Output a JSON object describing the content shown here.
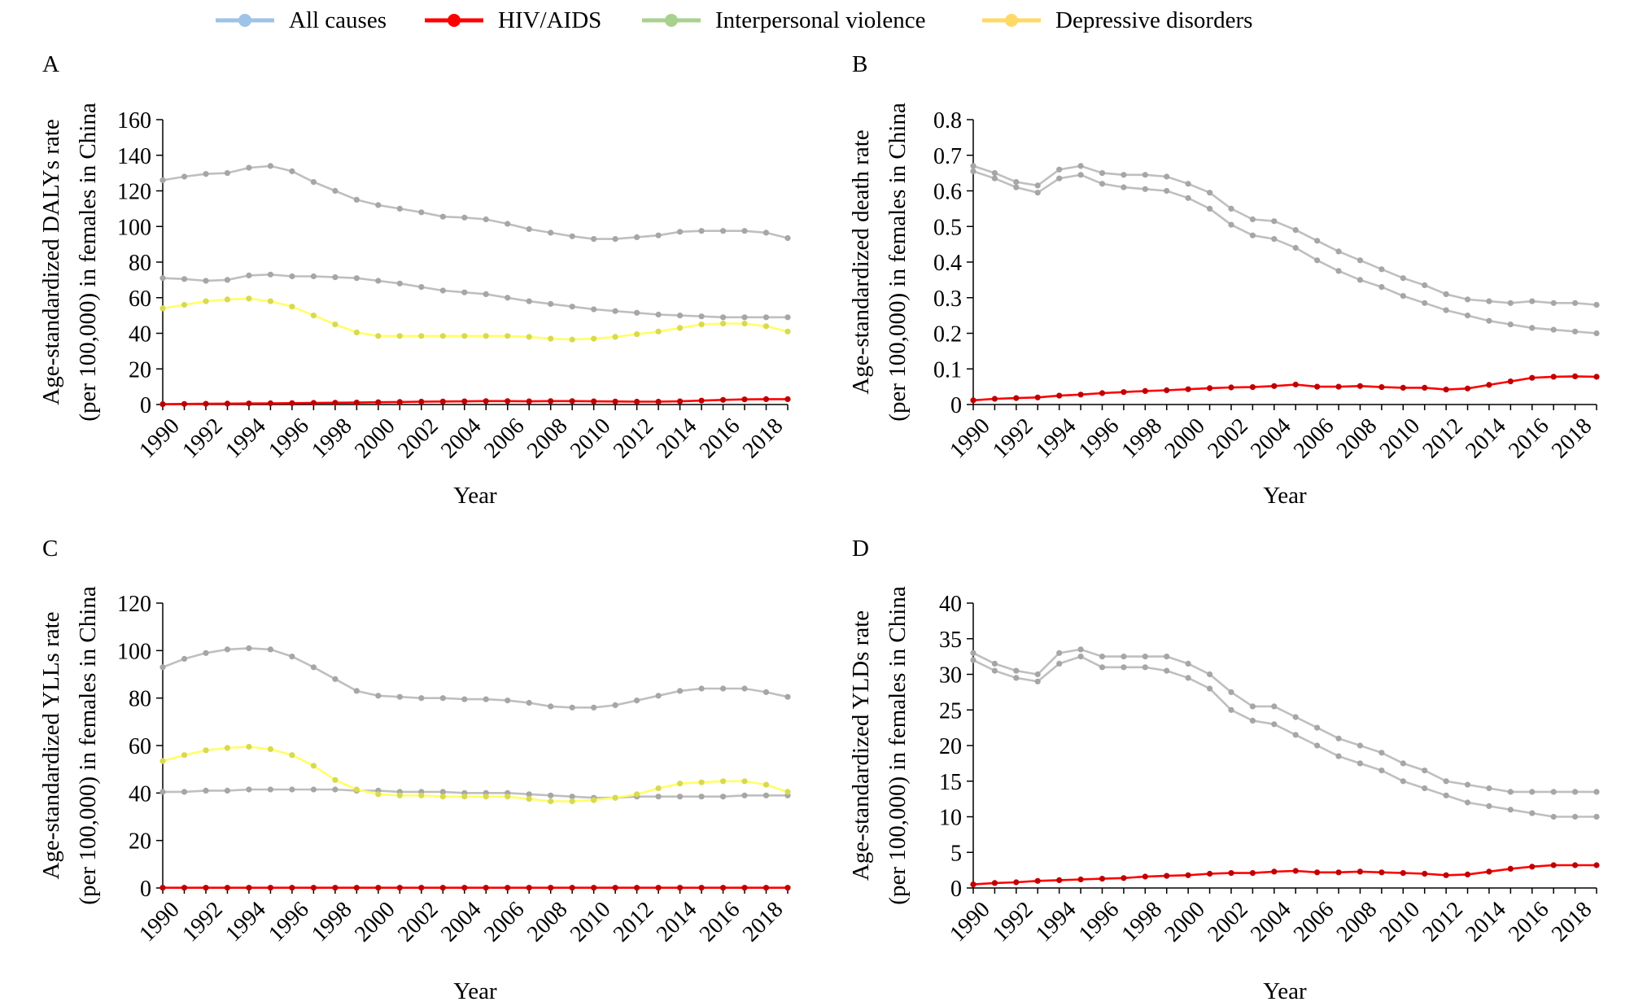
{
  "legend": [
    {
      "name": "All causes",
      "color": "#9dc3e6"
    },
    {
      "name": "HIV/AIDS",
      "color": "#ff0000"
    },
    {
      "name": "Interpersonal violence",
      "color": "#a9d18e"
    },
    {
      "name": "Depressive disorders",
      "color": "#ffd966"
    }
  ],
  "chart_data": [
    {
      "type": "line",
      "panel": "A",
      "xlabel": "Year",
      "ylabel": [
        "Age-standardized DALYs rate",
        "(per 100,000) in females in China"
      ],
      "ylim": [
        0,
        160
      ],
      "yticks": [
        "0",
        "20",
        "40",
        "60",
        "80",
        "100",
        "120",
        "140",
        "160"
      ],
      "xtick_labels": [
        "1990",
        "1992",
        "1994",
        "1996",
        "1998",
        "2000",
        "2002",
        "2004",
        "2006",
        "2008",
        "2010",
        "2012",
        "2014",
        "2016",
        "2018"
      ],
      "x": [
        1990,
        1991,
        1992,
        1993,
        1994,
        1995,
        1996,
        1997,
        1998,
        1999,
        2000,
        2001,
        2002,
        2003,
        2004,
        2005,
        2006,
        2007,
        2008,
        2009,
        2010,
        2011,
        2012,
        2013,
        2014,
        2015,
        2016,
        2017,
        2018,
        2019
      ],
      "series": [
        {
          "name": "All causes",
          "color": "#bfbfbf",
          "values": [
            126,
            128,
            129.5,
            130,
            133,
            134,
            131,
            125,
            120,
            115,
            112,
            110,
            108,
            105.5,
            105,
            104,
            101.5,
            98.5,
            96.5,
            94.5,
            93,
            93,
            94,
            95,
            97,
            97.5,
            97.5,
            97.5,
            96.5,
            93.5
          ]
        },
        {
          "name": "Interpersonal violence",
          "color": "#bfbfbf",
          "values": [
            71,
            70.5,
            69.5,
            70,
            72.5,
            73,
            72,
            72,
            71.5,
            71,
            69.5,
            68,
            66,
            64,
            63,
            62,
            60,
            58,
            56.5,
            55,
            53.5,
            52.5,
            51.5,
            50.5,
            50,
            49.5,
            49,
            49,
            49,
            49
          ]
        },
        {
          "name": "Depressive disorders",
          "color": "#ffff66",
          "values": [
            54,
            56,
            58,
            59,
            59.5,
            58,
            55,
            50,
            45,
            40.5,
            38.5,
            38.5,
            38.5,
            38.5,
            38.5,
            38.5,
            38.5,
            38,
            37,
            36.5,
            37,
            38,
            39.5,
            41,
            43,
            45,
            45.5,
            45.5,
            44,
            41
          ]
        },
        {
          "name": "HIV/AIDS",
          "color": "#ff0000",
          "values": [
            0.2,
            0.3,
            0.4,
            0.5,
            0.6,
            0.7,
            0.8,
            0.9,
            1,
            1.1,
            1.3,
            1.4,
            1.6,
            1.7,
            1.8,
            1.9,
            1.9,
            1.8,
            1.9,
            1.9,
            1.8,
            1.7,
            1.6,
            1.6,
            1.8,
            2.2,
            2.6,
            2.9,
            3,
            3
          ]
        }
      ]
    },
    {
      "type": "line",
      "panel": "B",
      "xlabel": "Year",
      "ylabel": [
        "Age-standardized death rate",
        "(per 100,000) in females in China"
      ],
      "ylim": [
        0,
        0.8
      ],
      "yticks": [
        "0",
        "0.1",
        "0.2",
        "0.3",
        "0.4",
        "0.5",
        "0.6",
        "0.7",
        "0.8"
      ],
      "xtick_labels": [
        "1990",
        "1992",
        "1994",
        "1996",
        "1998",
        "2000",
        "2002",
        "2004",
        "2006",
        "2008",
        "2010",
        "2012",
        "2014",
        "2016",
        "2018"
      ],
      "x": [
        1990,
        1991,
        1992,
        1993,
        1994,
        1995,
        1996,
        1997,
        1998,
        1999,
        2000,
        2001,
        2002,
        2003,
        2004,
        2005,
        2006,
        2007,
        2008,
        2009,
        2010,
        2011,
        2012,
        2013,
        2014,
        2015,
        2016,
        2017,
        2018,
        2019
      ],
      "series": [
        {
          "name": "All causes",
          "color": "#bfbfbf",
          "values": [
            0.67,
            0.65,
            0.625,
            0.615,
            0.66,
            0.67,
            0.65,
            0.645,
            0.645,
            0.64,
            0.62,
            0.595,
            0.55,
            0.52,
            0.515,
            0.49,
            0.46,
            0.43,
            0.405,
            0.38,
            0.355,
            0.335,
            0.31,
            0.295,
            0.29,
            0.285,
            0.29,
            0.285,
            0.285,
            0.28
          ]
        },
        {
          "name": "Interpersonal violence",
          "color": "#bfbfbf",
          "values": [
            0.655,
            0.635,
            0.61,
            0.595,
            0.635,
            0.645,
            0.62,
            0.61,
            0.605,
            0.6,
            0.58,
            0.55,
            0.505,
            0.475,
            0.465,
            0.44,
            0.405,
            0.375,
            0.35,
            0.33,
            0.305,
            0.285,
            0.265,
            0.25,
            0.235,
            0.225,
            0.215,
            0.21,
            0.205,
            0.2
          ]
        },
        {
          "name": "HIV/AIDS",
          "color": "#ff0000",
          "values": [
            0.012,
            0.016,
            0.018,
            0.02,
            0.025,
            0.028,
            0.032,
            0.035,
            0.038,
            0.04,
            0.043,
            0.046,
            0.048,
            0.049,
            0.052,
            0.056,
            0.05,
            0.05,
            0.052,
            0.049,
            0.047,
            0.047,
            0.042,
            0.045,
            0.055,
            0.065,
            0.075,
            0.078,
            0.079,
            0.078
          ]
        }
      ]
    },
    {
      "type": "line",
      "panel": "C",
      "xlabel": "Year",
      "ylabel": [
        "Age-standardized YLLs rate",
        "(per 100,000) in females in China"
      ],
      "ylim": [
        0,
        120
      ],
      "yticks": [
        "0",
        "20",
        "40",
        "60",
        "80",
        "100",
        "120"
      ],
      "xtick_labels": [
        "1990",
        "1992",
        "1994",
        "1996",
        "1998",
        "2000",
        "2002",
        "2004",
        "2006",
        "2008",
        "2010",
        "2012",
        "2014",
        "2016",
        "2018"
      ],
      "x": [
        1990,
        1991,
        1992,
        1993,
        1994,
        1995,
        1996,
        1997,
        1998,
        1999,
        2000,
        2001,
        2002,
        2003,
        2004,
        2005,
        2006,
        2007,
        2008,
        2009,
        2010,
        2011,
        2012,
        2013,
        2014,
        2015,
        2016,
        2017,
        2018,
        2019
      ],
      "series": [
        {
          "name": "All causes",
          "color": "#bfbfbf",
          "values": [
            93,
            96.5,
            99,
            100.5,
            101,
            100.5,
            97.5,
            93,
            88,
            83,
            81,
            80.5,
            80,
            80,
            79.5,
            79.5,
            79,
            78,
            76.5,
            76,
            76,
            77,
            79,
            81,
            83,
            84,
            84,
            84,
            82.5,
            80.5
          ]
        },
        {
          "name": "Interpersonal violence",
          "color": "#bfbfbf",
          "values": [
            40.5,
            40.5,
            41,
            41,
            41.5,
            41.5,
            41.5,
            41.5,
            41.5,
            41,
            41,
            40.5,
            40.5,
            40.5,
            40,
            40,
            40,
            39.5,
            39,
            38.5,
            38,
            38,
            38.5,
            38.5,
            38.5,
            38.5,
            38.5,
            39,
            39,
            39
          ]
        },
        {
          "name": "Depressive disorders",
          "color": "#ffff66",
          "values": [
            53.5,
            56,
            58,
            59,
            59.5,
            58.5,
            56,
            51.5,
            45.5,
            41.5,
            39.5,
            39,
            39,
            38.5,
            38.5,
            38.5,
            38.5,
            37.5,
            36.5,
            36.5,
            37,
            38,
            39.5,
            42,
            44,
            44.5,
            45,
            45,
            43.5,
            40.5
          ]
        },
        {
          "name": "HIV/AIDS",
          "color": "#ff0000",
          "values": [
            0.1,
            0.1,
            0.1,
            0.1,
            0.1,
            0.1,
            0.1,
            0.1,
            0.1,
            0.1,
            0.1,
            0.1,
            0.1,
            0.1,
            0.1,
            0.1,
            0.1,
            0.1,
            0.1,
            0.1,
            0.1,
            0.1,
            0.1,
            0.1,
            0.1,
            0.1,
            0.1,
            0.1,
            0.1,
            0.1
          ]
        }
      ]
    },
    {
      "type": "line",
      "panel": "D",
      "xlabel": "Year",
      "ylabel": [
        "Age-standardized YLDs rate",
        "(per 100,000) in females in China"
      ],
      "ylim": [
        0,
        40
      ],
      "yticks": [
        "0",
        "5",
        "10",
        "15",
        "20",
        "25",
        "30",
        "35",
        "40"
      ],
      "xtick_labels": [
        "1990",
        "1992",
        "1994",
        "1996",
        "1998",
        "2000",
        "2002",
        "2004",
        "2006",
        "2008",
        "2010",
        "2012",
        "2014",
        "2016",
        "2018"
      ],
      "x": [
        1990,
        1991,
        1992,
        1993,
        1994,
        1995,
        1996,
        1997,
        1998,
        1999,
        2000,
        2001,
        2002,
        2003,
        2004,
        2005,
        2006,
        2007,
        2008,
        2009,
        2010,
        2011,
        2012,
        2013,
        2014,
        2015,
        2016,
        2017,
        2018,
        2019
      ],
      "series": [
        {
          "name": "All causes",
          "color": "#bfbfbf",
          "values": [
            33,
            31.5,
            30.5,
            30,
            33,
            33.5,
            32.5,
            32.5,
            32.5,
            32.5,
            31.5,
            30,
            27.5,
            25.5,
            25.5,
            24,
            22.5,
            21,
            20,
            19,
            17.5,
            16.5,
            15,
            14.5,
            14,
            13.5,
            13.5,
            13.5,
            13.5,
            13.5
          ]
        },
        {
          "name": "Interpersonal violence",
          "color": "#bfbfbf",
          "values": [
            32,
            30.5,
            29.5,
            29,
            31.5,
            32.5,
            31,
            31,
            31,
            30.5,
            29.5,
            28,
            25,
            23.5,
            23,
            21.5,
            20,
            18.5,
            17.5,
            16.5,
            15,
            14,
            13,
            12,
            11.5,
            11,
            10.5,
            10,
            10,
            10
          ]
        },
        {
          "name": "HIV/AIDS",
          "color": "#ff0000",
          "values": [
            0.5,
            0.7,
            0.8,
            1,
            1.1,
            1.2,
            1.3,
            1.4,
            1.6,
            1.7,
            1.8,
            2,
            2.1,
            2.1,
            2.3,
            2.4,
            2.2,
            2.2,
            2.3,
            2.2,
            2.1,
            2,
            1.8,
            1.9,
            2.3,
            2.7,
            3,
            3.2,
            3.2,
            3.2
          ]
        }
      ]
    }
  ]
}
